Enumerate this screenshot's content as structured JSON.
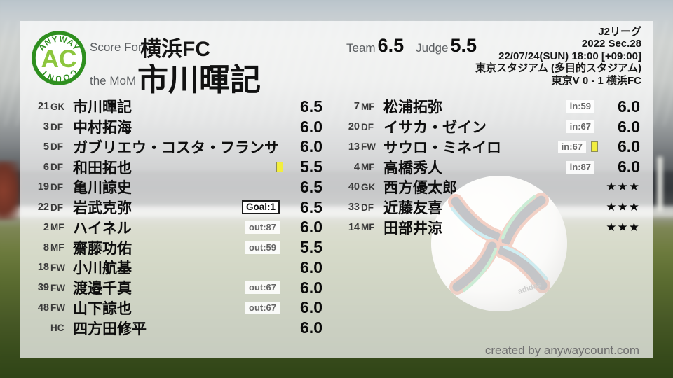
{
  "colors": {
    "logo_ring_green": "#2e8f1f",
    "logo_ac_green": "#8cc63e",
    "yellow_card": "#f2ee3e",
    "panel": "rgba(255,255,255,0.72)"
  },
  "logo": {
    "arc_top": "ANYWAY",
    "center": "AC",
    "arc_bottom": "COUNT"
  },
  "header": {
    "score_for_label": "Score For",
    "team_name": "横浜FC",
    "mom_label": "the MoM",
    "mom_name": "市川暉記"
  },
  "ratings": {
    "team_label": "Team",
    "team_score": "6.5",
    "judge_label": "Judge",
    "judge_score": "5.5"
  },
  "match": {
    "competition": "J2リーグ",
    "round": "2022 Sec.28",
    "kickoff": "22/07/24(SUN) 18:00 [+09:00]",
    "venue": "東京スタジアム (多目的スタジアム)",
    "result": "東京V 0 - 1 横浜FC"
  },
  "starters": [
    {
      "num": "21",
      "pos": "GK",
      "name": "市川暉記",
      "score": "6.5"
    },
    {
      "num": "3",
      "pos": "DF",
      "name": "中村拓海",
      "score": "6.0"
    },
    {
      "num": "5",
      "pos": "DF",
      "name": "ガブリエウ・コスタ・フランサ",
      "score": "6.0"
    },
    {
      "num": "6",
      "pos": "DF",
      "name": "和田拓也",
      "score": "5.5",
      "yellow": true
    },
    {
      "num": "19",
      "pos": "DF",
      "name": "亀川諒史",
      "score": "6.5"
    },
    {
      "num": "22",
      "pos": "DF",
      "name": "岩武克弥",
      "score": "6.5",
      "goal": "Goal:1"
    },
    {
      "num": "2",
      "pos": "MF",
      "name": "ハイネル",
      "score": "6.0",
      "sub": "out:87"
    },
    {
      "num": "8",
      "pos": "MF",
      "name": "齋藤功佑",
      "score": "5.5",
      "sub": "out:59"
    },
    {
      "num": "18",
      "pos": "FW",
      "name": "小川航基",
      "score": "6.0"
    },
    {
      "num": "39",
      "pos": "FW",
      "name": "渡邉千真",
      "score": "6.0",
      "sub": "out:67"
    },
    {
      "num": "48",
      "pos": "FW",
      "name": "山下諒也",
      "score": "6.0",
      "sub": "out:67"
    },
    {
      "num": "",
      "pos": "HC",
      "name": "四方田修平",
      "score": "6.0"
    }
  ],
  "subs": [
    {
      "num": "7",
      "pos": "MF",
      "name": "松浦拓弥",
      "sub": "in:59",
      "score": "6.0"
    },
    {
      "num": "20",
      "pos": "DF",
      "name": "イサカ・ゼイン",
      "sub": "in:67",
      "score": "6.0"
    },
    {
      "num": "13",
      "pos": "FW",
      "name": "サウロ・ミネイロ",
      "sub": "in:67",
      "yellow": true,
      "score": "6.0"
    },
    {
      "num": "4",
      "pos": "MF",
      "name": "高橋秀人",
      "sub": "in:87",
      "score": "6.0"
    },
    {
      "num": "40",
      "pos": "GK",
      "name": "西方優太郎",
      "score": "★★★"
    },
    {
      "num": "33",
      "pos": "DF",
      "name": "近藤友喜",
      "score": "★★★"
    },
    {
      "num": "14",
      "pos": "MF",
      "name": "田部井涼",
      "score": "★★★"
    }
  ],
  "footer": {
    "credit": "created by anywaycount.com"
  }
}
